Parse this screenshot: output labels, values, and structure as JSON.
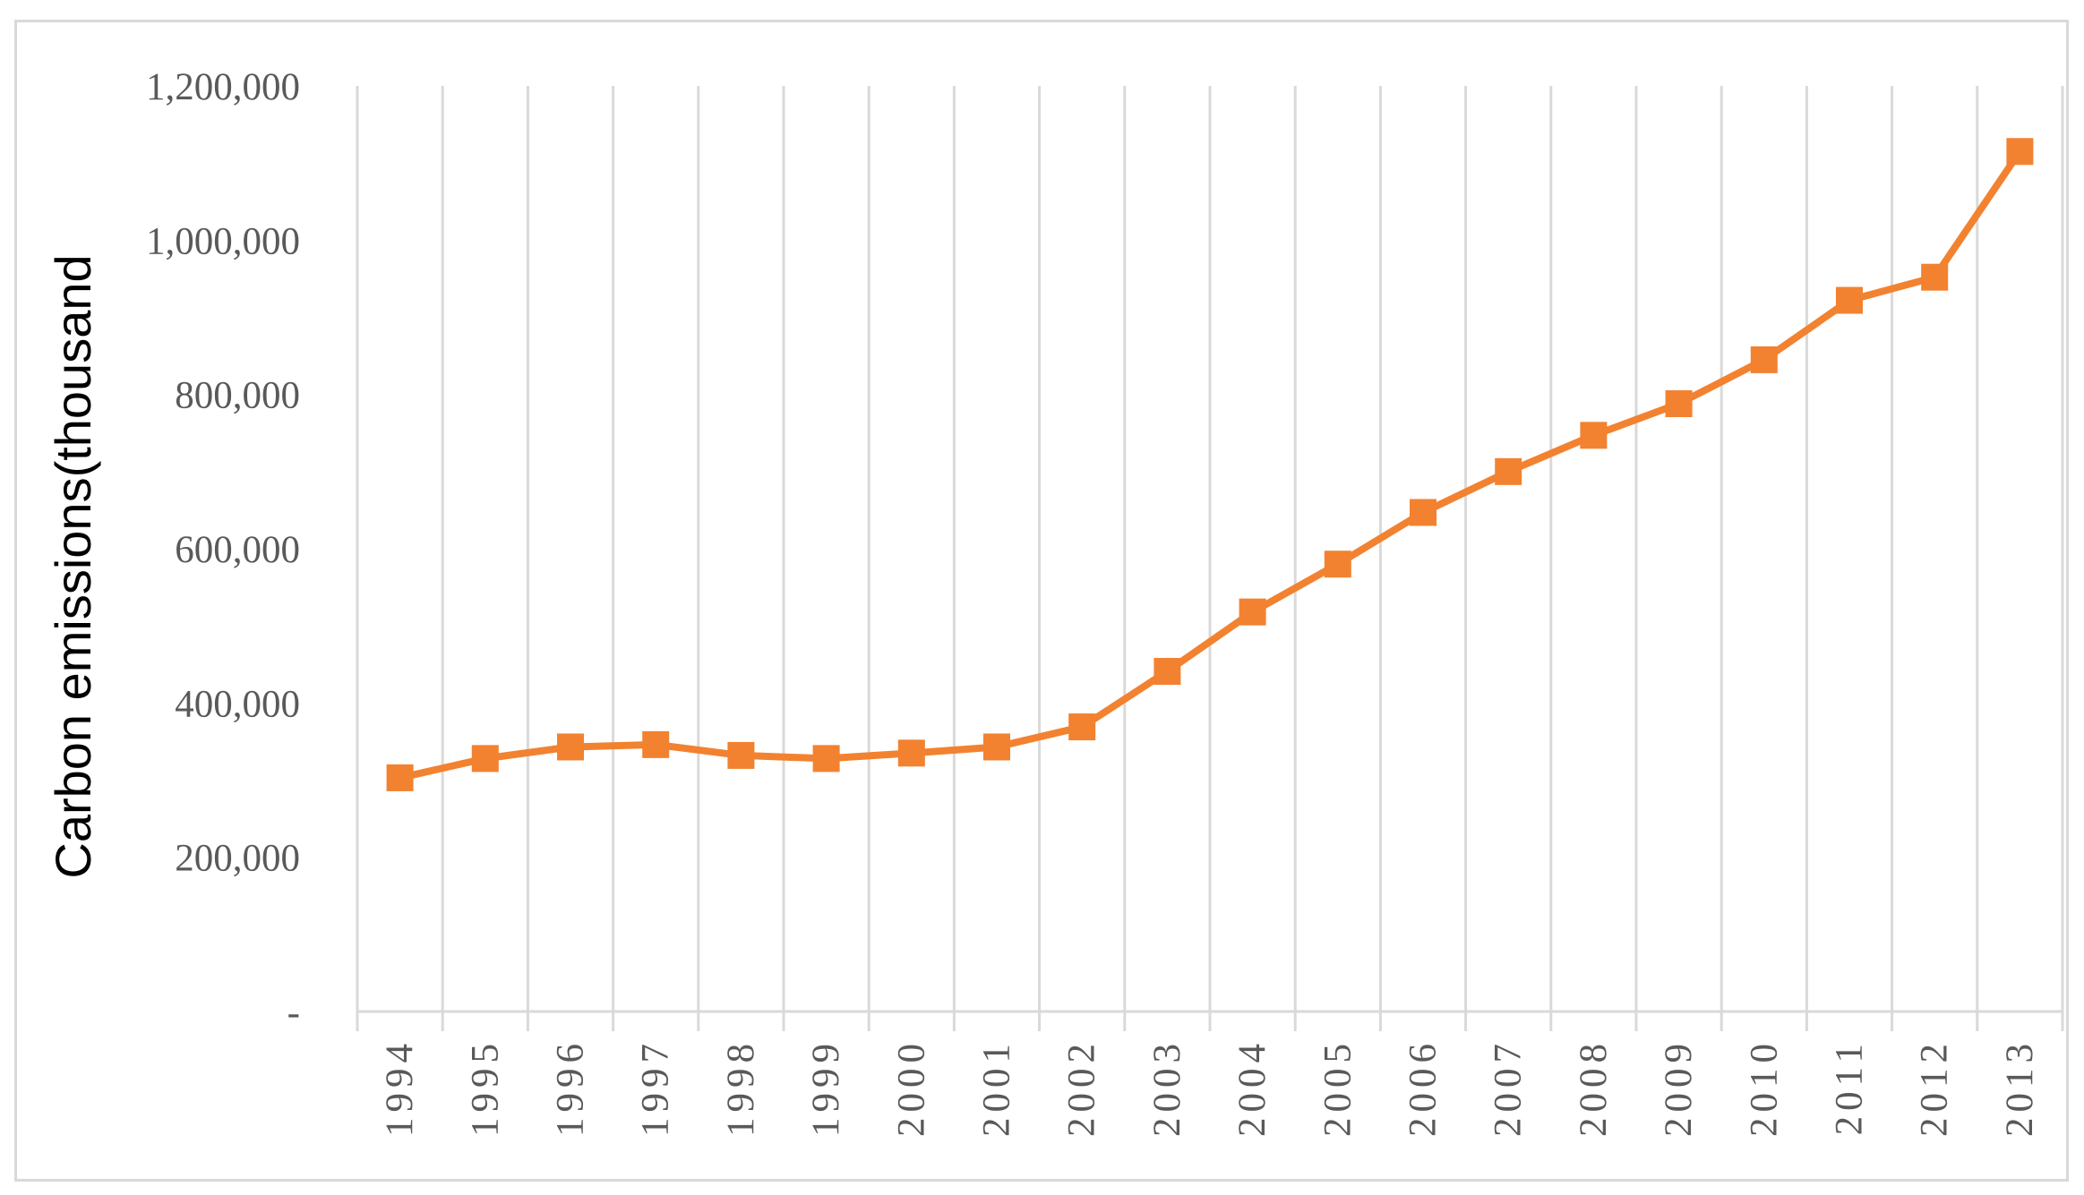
{
  "chart_data": {
    "type": "line",
    "title": "",
    "xlabel": "",
    "ylabel": "Carbon emissions(thousand",
    "categories": [
      "1994",
      "1995",
      "1996",
      "1997",
      "1998",
      "1999",
      "2000",
      "2001",
      "2002",
      "2003",
      "2004",
      "2005",
      "2006",
      "2007",
      "2008",
      "2009",
      "2010",
      "2011",
      "2012",
      "2013"
    ],
    "series": [
      {
        "values": [
          303000,
          328000,
          343000,
          346000,
          332000,
          328000,
          335000,
          343000,
          369000,
          441000,
          518000,
          580000,
          647000,
          700000,
          747000,
          788000,
          845000,
          922000,
          952000,
          1115000
        ],
        "color": "#f28230",
        "marker": "square"
      }
    ],
    "ylim": [
      0,
      1200000
    ],
    "yticks": [
      0,
      200000,
      400000,
      600000,
      800000,
      1000000,
      1200000
    ],
    "ytick_labels": [
      "-",
      "200,000",
      "400,000",
      "600,000",
      "800,000",
      "1,000,000",
      "1,200,000"
    ],
    "grid": "vertical",
    "legend": "none"
  }
}
